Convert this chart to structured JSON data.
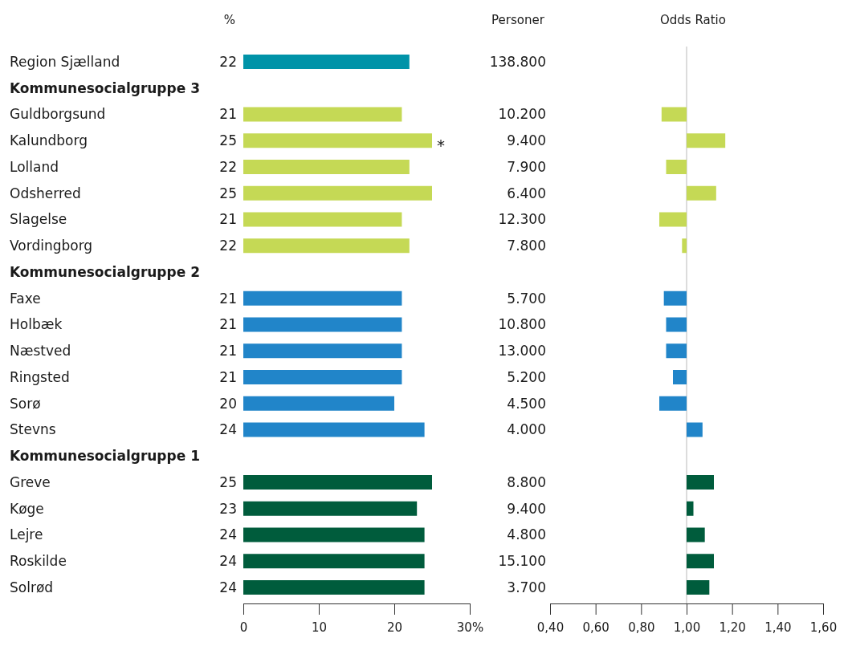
{
  "chart_data": [
    {
      "type": "bar",
      "orientation": "horizontal",
      "title": "%",
      "categories": [
        "Region Sjælland",
        "Kommunesocialgruppe 3",
        "Guldborgsund",
        "Kalundborg",
        "Lolland",
        "Odsherred",
        "Slagelse",
        "Vordingborg",
        "Kommunesocialgruppe 2",
        "Faxe",
        "Holbæk",
        "Næstved",
        "Ringsted",
        "Sorø",
        "Stevns",
        "Kommunesocialgruppe 1",
        "Greve",
        "Køge",
        "Lejre",
        "Roskilde",
        "Solrød"
      ],
      "values": [
        22,
        null,
        21,
        25,
        22,
        25,
        21,
        22,
        null,
        21,
        21,
        21,
        21,
        20,
        24,
        null,
        25,
        23,
        24,
        24,
        24
      ],
      "colors": [
        "#0093a8",
        null,
        "#c5d955",
        "#c5d955",
        "#c5d955",
        "#c5d955",
        "#c5d955",
        "#c5d955",
        null,
        "#2185c9",
        "#2185c9",
        "#2185c9",
        "#2185c9",
        "#2185c9",
        "#2185c9",
        null,
        "#005c3c",
        "#005c3c",
        "#005c3c",
        "#005c3c",
        "#005c3c"
      ],
      "data_labels": true,
      "xlim": [
        0,
        30
      ],
      "xticks": [
        0,
        10,
        20,
        {
          "value": 30,
          "label": "30%"
        }
      ],
      "annotations": [
        {
          "text": "*",
          "x": 25,
          "y": "Kalundborg"
        }
      ]
    },
    {
      "type": "other",
      "title": "Personer",
      "categories": [
        null,
        null,
        null,
        null,
        null,
        null,
        null,
        null,
        null,
        null,
        null,
        null,
        null,
        null,
        null,
        null,
        null,
        null,
        null,
        null,
        null
      ],
      "values": [
        138800,
        null,
        10200,
        9400,
        7900,
        6400,
        12300,
        7800,
        null,
        5700,
        10800,
        13000,
        5200,
        4500,
        4000,
        null,
        8800,
        9400,
        4800,
        15100,
        3700
      ],
      "value_labels": [
        "138.800",
        null,
        "10.200",
        "9.400",
        "7.900",
        "6.400",
        "12.300",
        "7.800",
        null,
        "5.700",
        "10.800",
        "13.000",
        "5.200",
        "4.500",
        "4.000",
        null,
        "8.800",
        "9.400",
        "4.800",
        "15.100",
        "3.700"
      ]
    },
    {
      "type": "bar",
      "orientation": "horizontal",
      "title": "Odds Ratio",
      "tick_labels": "x",
      "categories": [
        null,
        null,
        null,
        null,
        null,
        null,
        null,
        null,
        null,
        null,
        null,
        null,
        null,
        null,
        null,
        null,
        null,
        null,
        null,
        null,
        null
      ],
      "base": [
        null,
        null,
        1,
        1,
        1,
        1,
        1,
        1,
        null,
        1,
        1,
        1,
        1,
        1,
        1,
        null,
        1,
        1,
        1,
        1,
        1
      ],
      "values": [
        null,
        null,
        -0.11,
        0.17,
        -0.09,
        0.13,
        -0.12,
        -0.02,
        null,
        -0.1,
        -0.09,
        -0.09,
        -0.06,
        -0.12,
        0.07,
        null,
        0.12,
        0.03,
        0.08,
        0.12,
        0.1
      ],
      "colors": [
        null,
        null,
        "#c5d955",
        "#c5d955",
        "#c5d955",
        "#c5d955",
        "#c5d955",
        "#c5d955",
        null,
        "#2185c9",
        "#2185c9",
        "#2185c9",
        "#2185c9",
        "#2185c9",
        "#2185c9",
        null,
        "#005c3c",
        "#005c3c",
        "#005c3c",
        "#005c3c",
        "#005c3c"
      ],
      "xlim": [
        0.4,
        1.6
      ],
      "xticks": [
        {
          "value": 0.4,
          "label": "0,40"
        },
        {
          "value": 0.6,
          "label": "0,60"
        },
        {
          "value": 0.8,
          "label": "0,80"
        },
        {
          "value": 1,
          "label": "1,00"
        },
        {
          "value": 1.2,
          "label": "1,20"
        },
        {
          "value": 1.4,
          "label": "1,40"
        },
        {
          "value": 1.6,
          "label": "1,60"
        }
      ],
      "ref_lines": [
        {
          "axis": "x",
          "value": 1,
          "color": "#d0d0d0"
        }
      ]
    }
  ]
}
